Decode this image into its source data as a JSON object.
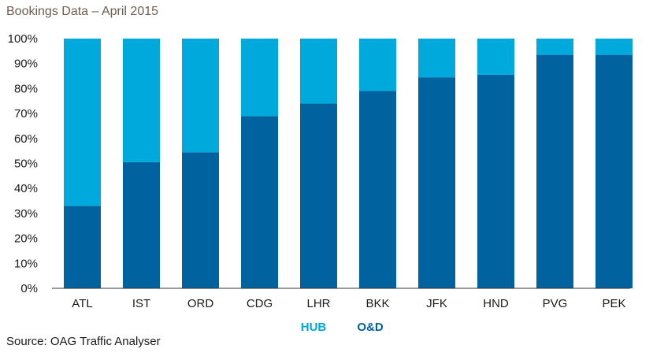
{
  "title": "Bookings Data – April 2015",
  "source": "Source: OAG Traffic Analyser",
  "colors": {
    "hub": "#00a9dc",
    "od": "#00629e",
    "axis": "#333333"
  },
  "chart_data": {
    "type": "bar",
    "stacked": true,
    "title": "Bookings Data – April 2015",
    "xlabel": "",
    "ylabel": "",
    "ylim": [
      0,
      100
    ],
    "yticks": [
      "0%",
      "10%",
      "20%",
      "30%",
      "40%",
      "50%",
      "60%",
      "70%",
      "80%",
      "90%",
      "100%"
    ],
    "categories": [
      "ATL",
      "IST",
      "ORD",
      "CDG",
      "LHR",
      "BKK",
      "JFK",
      "HND",
      "PVG",
      "PEK"
    ],
    "series": [
      {
        "name": "O&D",
        "values": [
          33,
          50.5,
          54.5,
          69,
          74,
          79,
          84.5,
          85.5,
          93.5,
          93.5
        ]
      },
      {
        "name": "HUB",
        "values": [
          67,
          49.5,
          45.5,
          31,
          26,
          21,
          15.5,
          14.5,
          6.5,
          6.5
        ]
      }
    ],
    "legend": {
      "position": "bottom-center",
      "entries": [
        "HUB",
        "O&D"
      ]
    },
    "grid": false
  }
}
